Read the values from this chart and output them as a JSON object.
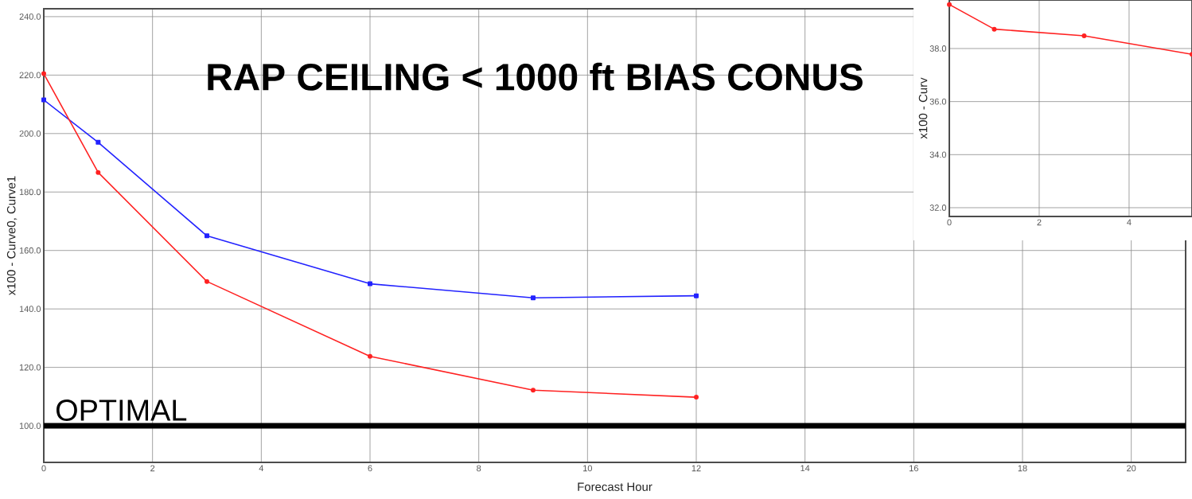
{
  "chart_data": [
    {
      "type": "line",
      "title": "RAP CEILING < 1000 ft  BIAS CONUS",
      "xlabel": "Forecast Hour",
      "ylabel": "x100 - Curve0, Curve1",
      "x": [
        0,
        1,
        3,
        6,
        9,
        12
      ],
      "series": [
        {
          "color": "#2222ff",
          "marker": "square",
          "values": [
            211.5,
            197,
            165,
            148.6,
            143.8,
            144.5
          ]
        },
        {
          "color": "#ff2222",
          "marker": "circle",
          "values": [
            220.5,
            186.7,
            149.4,
            123.8,
            112.2,
            109.8
          ]
        }
      ],
      "xlim": [
        0,
        21
      ],
      "ylim": [
        87.5,
        242.7
      ],
      "xticks": [
        0,
        2,
        4,
        6,
        8,
        10,
        12,
        14,
        16,
        18,
        20
      ],
      "yticks": [
        {
          "value": 100,
          "label": "100.0"
        },
        {
          "value": 120,
          "label": "120.0"
        },
        {
          "value": 140,
          "label": "140.0"
        },
        {
          "value": 160,
          "label": "160.0"
        },
        {
          "value": 180,
          "label": "180.0"
        },
        {
          "value": 200,
          "label": "200.0"
        },
        {
          "value": 220,
          "label": "220.0"
        },
        {
          "value": 240,
          "label": "240.0"
        }
      ],
      "grid": true,
      "ref_lines": [
        {
          "axis": "y",
          "value": 100,
          "label": "OPTIMAL",
          "color": "#000000"
        }
      ]
    },
    {
      "type": "line",
      "ylabel": "x100 - Curv",
      "x": [
        0,
        1,
        3,
        5.4
      ],
      "series": [
        {
          "color": "#ff2222",
          "marker": "circle",
          "values": [
            39.66,
            38.73,
            38.48,
            37.78
          ]
        }
      ],
      "xlim": [
        0,
        5.4
      ],
      "ylim": [
        31.67,
        39.83
      ],
      "xticks": [
        0,
        2,
        4
      ],
      "yticks": [
        {
          "value": 32,
          "label": "32.0"
        },
        {
          "value": 34,
          "label": "34.0"
        },
        {
          "value": 36,
          "label": "36.0"
        },
        {
          "value": 38,
          "label": "38.0"
        }
      ],
      "grid": true
    }
  ]
}
